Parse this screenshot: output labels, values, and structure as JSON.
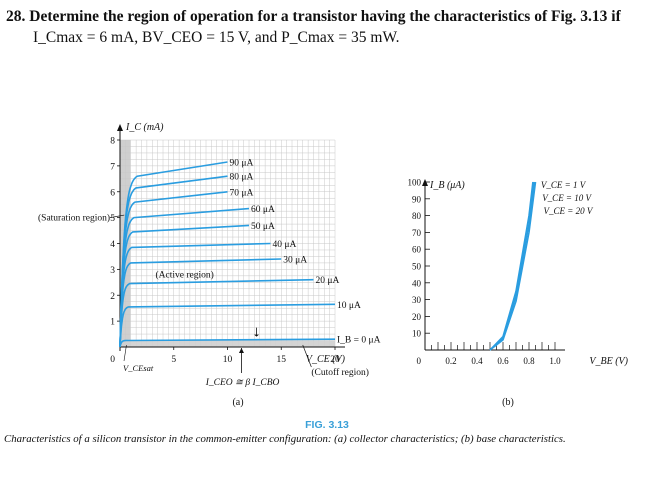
{
  "problem": {
    "number": "28.",
    "line1": "Determine the region of operation for a transistor having the characteristics of Fig. 3.13 if",
    "line2": "I_Cmax = 6 mA, BV_CEO = 15 V, and P_Cmax = 35 mW."
  },
  "figure": {
    "label": "FIG. 3.13",
    "caption": "Characteristics of a silicon transistor in the common-emitter configuration: (a) collector characteristics; (b) base characteristics.",
    "panel_a_label": "(a)",
    "panel_b_label": "(b)"
  },
  "chart_data": [
    {
      "type": "line",
      "panel": "(a)",
      "ylabel": "I_C (mA)",
      "xlabel": "V_CE (V)",
      "xlim": [
        0,
        20
      ],
      "ylim": [
        0,
        8
      ],
      "x_ticks": [
        "5",
        "10",
        "15",
        "20"
      ],
      "y_ticks": [
        "1",
        "2",
        "3",
        "4",
        "5",
        "6",
        "7",
        "8"
      ],
      "origin_label": "0",
      "grid": true,
      "series": [
        {
          "name": "90 μA",
          "sat_x": 1.6,
          "values": [
            [
              1.6,
              6.6
            ],
            [
              10,
              7.15
            ]
          ]
        },
        {
          "name": "80 μA",
          "sat_x": 1.5,
          "values": [
            [
              1.5,
              6.15
            ],
            [
              10,
              6.6
            ]
          ]
        },
        {
          "name": "70 μA",
          "sat_x": 1.4,
          "values": [
            [
              1.4,
              5.6
            ],
            [
              10,
              6.0
            ]
          ]
        },
        {
          "name": "60 μA",
          "sat_x": 1.3,
          "values": [
            [
              1.3,
              5.0
            ],
            [
              12,
              5.35
            ]
          ]
        },
        {
          "name": "50 μA",
          "sat_x": 1.2,
          "values": [
            [
              1.2,
              4.45
            ],
            [
              12,
              4.7
            ]
          ]
        },
        {
          "name": "40 μA",
          "sat_x": 1.1,
          "values": [
            [
              1.1,
              3.85
            ],
            [
              14,
              4.0
            ]
          ]
        },
        {
          "name": "30 μA",
          "sat_x": 1.0,
          "values": [
            [
              1.0,
              3.25
            ],
            [
              15,
              3.4
            ]
          ]
        },
        {
          "name": "20 μA",
          "sat_x": 0.9,
          "values": [
            [
              0.9,
              2.45
            ],
            [
              18,
              2.6
            ]
          ]
        },
        {
          "name": "10 μA",
          "sat_x": 0.8,
          "values": [
            [
              0.8,
              1.55
            ],
            [
              20,
              1.65
            ]
          ]
        },
        {
          "name": "I_B = 0 μA",
          "sat_x": 0.5,
          "values": [
            [
              0.5,
              0.25
            ],
            [
              20,
              0.3
            ]
          ]
        }
      ],
      "annotations": [
        "(Saturation region)",
        "(Active region)",
        "(Cutoff region)",
        "V_CEsat",
        "I_CEO ≅ β I_CBO"
      ]
    },
    {
      "type": "line",
      "panel": "(b)",
      "ylabel": "I_B (μA)",
      "xlabel": "V_BE (V)",
      "xlim": [
        0,
        1.0
      ],
      "ylim": [
        0,
        100
      ],
      "x_ticks": [
        "0.2",
        "0.4",
        "0.6",
        "0.8",
        "1.0"
      ],
      "y_ticks": [
        "10",
        "20",
        "30",
        "40",
        "50",
        "60",
        "70",
        "80",
        "90",
        "100"
      ],
      "origin_label": "0",
      "grid": false,
      "series": [
        {
          "name": "V_CE = 1 V",
          "values": [
            [
              0.5,
              0
            ],
            [
              0.6,
              8
            ],
            [
              0.7,
              35
            ],
            [
              0.8,
              80
            ],
            [
              0.83,
              100
            ]
          ]
        },
        {
          "name": "V_CE = 10 V",
          "values": [
            [
              0.5,
              0
            ],
            [
              0.6,
              7
            ],
            [
              0.7,
              32
            ],
            [
              0.8,
              75
            ],
            [
              0.84,
              100
            ]
          ]
        },
        {
          "name": "V_CE = 20 V",
          "values": [
            [
              0.5,
              0
            ],
            [
              0.6,
              6
            ],
            [
              0.7,
              29
            ],
            [
              0.8,
              70
            ],
            [
              0.85,
              100
            ]
          ]
        }
      ]
    }
  ],
  "colors": {
    "curve": "#2a9de0",
    "grid": "#c8c8c8",
    "shade": "#cfcfcf",
    "fig_label": "#3aa0d8"
  }
}
